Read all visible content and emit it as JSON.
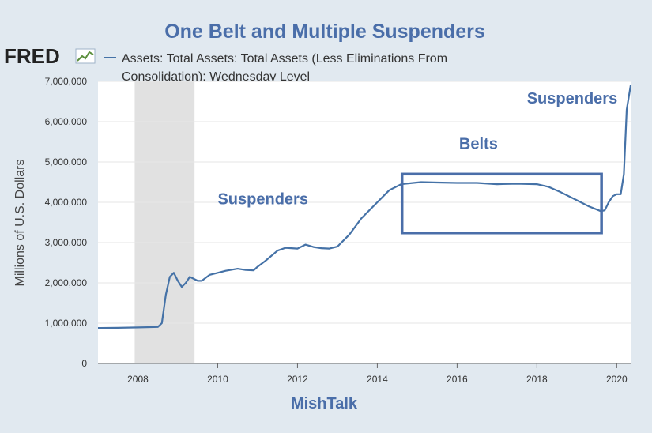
{
  "header": {
    "title": "One Belt and Multiple Suspenders",
    "logo_text": "FRED",
    "legend_line1": "Assets: Total Assets: Total Assets (Less Eliminations From",
    "legend_line2": "Consolidation): Wednesday Level"
  },
  "colors": {
    "line": "#4572a7",
    "annotation": "#4a6ea9",
    "recession": "#e1e1e1",
    "background": "#e1e9f0",
    "plot": "#ffffff",
    "grid": "#e6e6e6"
  },
  "footer": {
    "credit": "MishTalk"
  },
  "chart_data": {
    "type": "line",
    "title": "One Belt and Multiple Suspenders",
    "ylabel": "Millions of U.S. Dollars",
    "xlabel": "",
    "xlim": [
      2007.0,
      2020.35
    ],
    "ylim": [
      0,
      7000000
    ],
    "grid": true,
    "y_ticks": [
      0,
      1000000,
      2000000,
      3000000,
      4000000,
      5000000,
      6000000,
      7000000
    ],
    "y_tick_labels": [
      "0",
      "1,000,000",
      "2,000,000",
      "3,000,000",
      "4,000,000",
      "5,000,000",
      "6,000,000",
      "7,000,000"
    ],
    "x_ticks": [
      2008,
      2010,
      2012,
      2014,
      2016,
      2018,
      2020
    ],
    "x_tick_labels": [
      "2008",
      "2010",
      "2012",
      "2014",
      "2016",
      "2018",
      "2020"
    ],
    "recession": {
      "start": 2007.92,
      "end": 2009.42
    },
    "series": [
      {
        "name": "Assets: Total Assets: Total Assets (Less Eliminations From Consolidation): Wednesday Level",
        "x": [
          2007.0,
          2007.5,
          2008.0,
          2008.5,
          2008.6,
          2008.7,
          2008.8,
          2008.9,
          2009.0,
          2009.1,
          2009.2,
          2009.3,
          2009.4,
          2009.5,
          2009.6,
          2009.8,
          2010.0,
          2010.2,
          2010.5,
          2010.7,
          2010.9,
          2011.0,
          2011.2,
          2011.5,
          2011.7,
          2011.85,
          2012.0,
          2012.1,
          2012.2,
          2012.4,
          2012.6,
          2012.8,
          2013.0,
          2013.3,
          2013.6,
          2014.0,
          2014.3,
          2014.6,
          2014.9,
          2015.1,
          2015.5,
          2016.0,
          2016.5,
          2017.0,
          2017.5,
          2018.0,
          2018.3,
          2018.6,
          2019.0,
          2019.3,
          2019.6,
          2019.7,
          2019.8,
          2019.9,
          2020.0,
          2020.1,
          2020.18,
          2020.25,
          2020.35
        ],
        "values": [
          880000,
          885000,
          895000,
          905000,
          1000000,
          1700000,
          2150000,
          2250000,
          2050000,
          1900000,
          2000000,
          2150000,
          2100000,
          2050000,
          2050000,
          2200000,
          2250000,
          2300000,
          2350000,
          2320000,
          2310000,
          2400000,
          2550000,
          2800000,
          2870000,
          2860000,
          2850000,
          2900000,
          2950000,
          2890000,
          2860000,
          2850000,
          2900000,
          3200000,
          3600000,
          4000000,
          4300000,
          4450000,
          4480000,
          4500000,
          4490000,
          4480000,
          4480000,
          4450000,
          4460000,
          4450000,
          4380000,
          4250000,
          4050000,
          3900000,
          3780000,
          3800000,
          4000000,
          4150000,
          4200000,
          4200000,
          4700000,
          6300000,
          6900000
        ]
      }
    ],
    "annotations": [
      {
        "text": "Suspenders",
        "x": 2010.0,
        "y": 3950000
      },
      {
        "text": "Belts",
        "x": 2016.05,
        "y": 5320000
      },
      {
        "text": "Suspenders",
        "x": 2017.75,
        "y": 6450000
      }
    ],
    "highlight_box": {
      "x0": 2014.62,
      "x1": 2019.62,
      "y0": 3240000,
      "y1": 4700000
    }
  }
}
